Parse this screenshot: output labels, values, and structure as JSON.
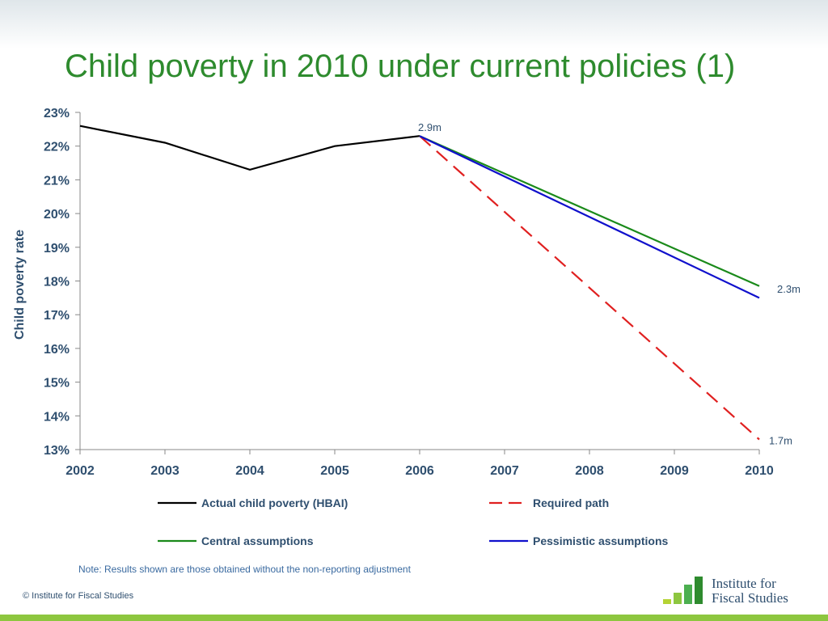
{
  "slide": {
    "title": "Child poverty in 2010 under current policies (1)",
    "note": "Note: Results shown are those obtained without the non-reporting adjustment",
    "copyright": "© Institute for Fiscal Studies",
    "logo": {
      "line1": "Institute for",
      "line2": "Fiscal Studies",
      "bar_colors": [
        "#b5d334",
        "#8dc63f",
        "#4caf50",
        "#2e8b2e"
      ]
    },
    "bottom_bar_color": "#8dc63f"
  },
  "chart_data": {
    "type": "line",
    "title": "",
    "xlabel": "",
    "ylabel": "Child poverty rate",
    "x": [
      2002,
      2003,
      2004,
      2005,
      2006,
      2007,
      2008,
      2009,
      2010
    ],
    "x_ticks": [
      "2002",
      "2003",
      "2004",
      "2005",
      "2006",
      "2007",
      "2008",
      "2009",
      "2010"
    ],
    "y_ticks": [
      "13%",
      "14%",
      "15%",
      "16%",
      "17%",
      "18%",
      "19%",
      "20%",
      "21%",
      "22%",
      "23%"
    ],
    "ylim": [
      13,
      23
    ],
    "y_unit": "%",
    "grid": false,
    "legend_position": "bottom",
    "series": [
      {
        "name": "Actual child poverty (HBAI)",
        "color": "#000000",
        "dash": "solid",
        "x": [
          2002,
          2003,
          2004,
          2005,
          2006
        ],
        "values": [
          22.6,
          22.1,
          21.3,
          22.0,
          22.3
        ]
      },
      {
        "name": "Required path",
        "color": "#e02020",
        "dash": "dashed",
        "x": [
          2006,
          2010
        ],
        "values": [
          22.3,
          13.3
        ]
      },
      {
        "name": "Central assumptions",
        "color": "#1a8a1a",
        "dash": "solid",
        "x": [
          2006,
          2010
        ],
        "values": [
          22.3,
          17.85
        ]
      },
      {
        "name": "Pessimistic assumptions",
        "color": "#1010cc",
        "dash": "solid",
        "x": [
          2006,
          2010
        ],
        "values": [
          22.3,
          17.5
        ]
      }
    ],
    "annotations": [
      {
        "text": "2.9m",
        "x": 2006,
        "y": 22.3
      },
      {
        "text": "2.3m",
        "x": 2010,
        "y": 17.85
      },
      {
        "text": "1.7m",
        "x": 2010,
        "y": 13.3
      }
    ]
  }
}
